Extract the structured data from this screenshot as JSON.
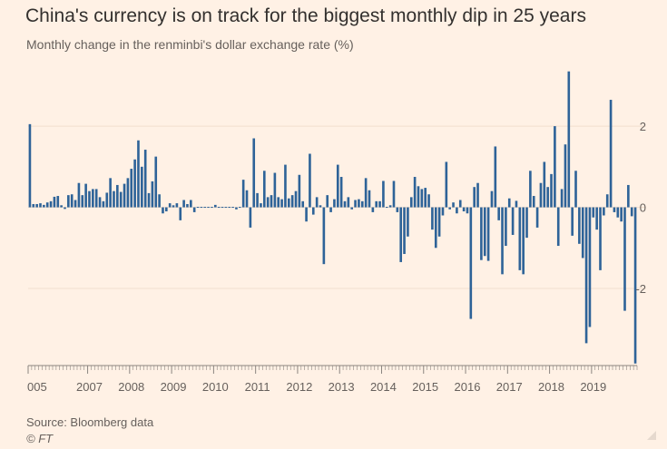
{
  "title": "China's currency is on track for the biggest monthly dip in 25 years",
  "subtitle": "Monthly change in the renminbi's dollar exchange rate (%)",
  "source": "Source: Bloomberg data",
  "credit": "© FT",
  "colors": {
    "background": "#FFF1E5",
    "bar": "#2E6398",
    "grid": "#F2DFCE",
    "axis": "#8B8580"
  },
  "chart_data": {
    "type": "bar",
    "title": "China's currency is on track for the biggest monthly dip in 25 years",
    "ylabel": "Monthly change in the renminbi's dollar exchange rate (%)",
    "xlabel": "",
    "ylim": [
      -3.9,
      3.5
    ],
    "yticks": [
      2,
      0,
      -2
    ],
    "x_start": "2005-08",
    "x_ticks": [
      "005",
      "2007",
      "2008",
      "2009",
      "2010",
      "2011",
      "2012",
      "2013",
      "2014",
      "2015",
      "2016",
      "2017",
      "2018",
      "2019"
    ],
    "x_tick_index": [
      0,
      17,
      29,
      41,
      53,
      65,
      77,
      89,
      101,
      113,
      125,
      137,
      149,
      161
    ],
    "series": [
      {
        "name": "Monthly change (%)",
        "values": [
          2.05,
          0.08,
          0.08,
          0.1,
          0.06,
          0.12,
          0.15,
          0.26,
          0.28,
          0.05,
          -0.04,
          0.3,
          0.32,
          0.18,
          0.6,
          0.3,
          0.58,
          0.4,
          0.45,
          0.45,
          0.25,
          0.15,
          0.36,
          0.72,
          0.4,
          0.55,
          0.38,
          0.58,
          0.72,
          0.95,
          1.18,
          1.65,
          1.0,
          1.42,
          0.35,
          0.64,
          1.25,
          0.32,
          -0.15,
          -0.1,
          0.1,
          0.05,
          0.1,
          -0.32,
          0.18,
          0.08,
          0.18,
          -0.12,
          0.0,
          0.0,
          0.02,
          0.02,
          0.0,
          0.06,
          -0.02,
          0.0,
          0.0,
          0.0,
          0.0,
          -0.05,
          0.0,
          0.68,
          0.42,
          -0.5,
          1.7,
          0.35,
          0.1,
          0.9,
          0.25,
          0.3,
          0.85,
          0.25,
          0.2,
          1.05,
          0.22,
          0.3,
          0.4,
          0.8,
          0.15,
          -0.35,
          1.32,
          -0.18,
          0.25,
          0.05,
          -1.4,
          0.3,
          -0.12,
          0.2,
          1.05,
          0.75,
          0.15,
          0.25,
          -0.05,
          0.18,
          0.2,
          0.15,
          0.72,
          0.42,
          -0.12,
          0.15,
          0.15,
          0.65,
          0.0,
          0.05,
          0.65,
          -0.12,
          -1.35,
          -1.15,
          -0.72,
          0.25,
          0.75,
          0.52,
          0.45,
          0.48,
          0.32,
          -0.55,
          -1.0,
          -0.72,
          -0.2,
          1.12,
          -0.05,
          0.12,
          -0.15,
          0.18,
          -0.1,
          -0.15,
          -2.75,
          0.5,
          0.6,
          -1.3,
          -1.2,
          -1.32,
          0.4,
          1.5,
          -0.32,
          -1.65,
          -0.95,
          0.22,
          -0.68,
          0.16,
          -1.55,
          -1.65,
          -0.75,
          0.9,
          0.28,
          -0.5,
          0.6,
          1.12,
          0.5,
          0.82,
          2.0,
          -0.95,
          0.45,
          1.55,
          3.35,
          -0.7,
          0.9,
          -0.9,
          -1.25,
          -3.35,
          -2.95,
          -0.25,
          -0.55,
          -1.55,
          -0.2,
          0.32,
          2.65,
          -0.12,
          -0.25,
          -0.35,
          -2.55,
          0.55,
          -0.22,
          -3.85
        ]
      }
    ]
  }
}
